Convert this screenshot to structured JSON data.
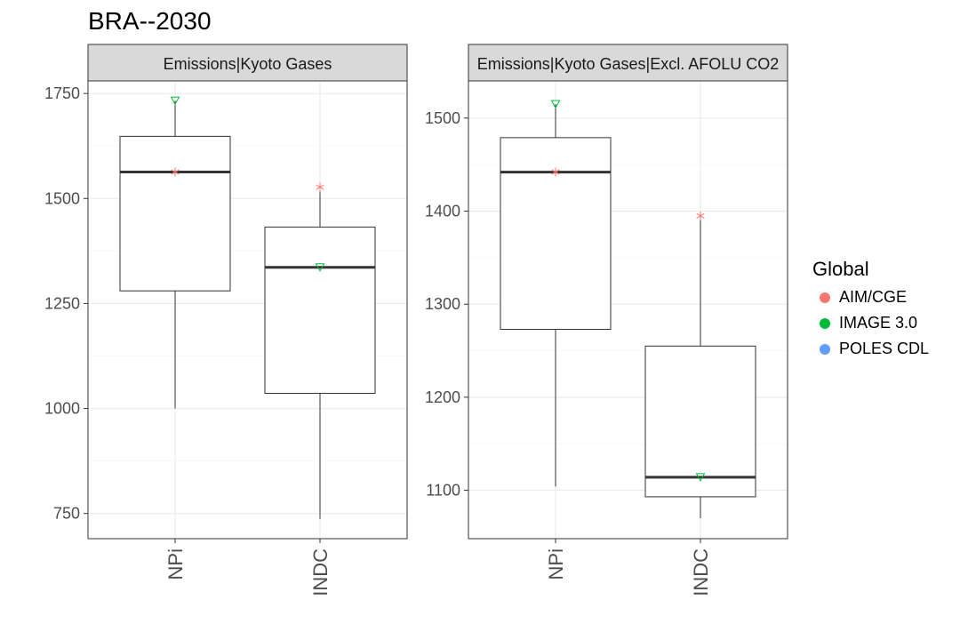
{
  "title": "BRA--2030",
  "legend": {
    "title": "Global",
    "items": [
      {
        "label": "AIM/CGE",
        "color": "#F8766D",
        "shape": "asterisk"
      },
      {
        "label": "IMAGE 3.0",
        "color": "#00BA38",
        "shape": "triangle-down"
      },
      {
        "label": "POLES CDL",
        "color": "#619CFF",
        "shape": "circle"
      }
    ]
  },
  "chart_data": [
    {
      "type": "boxplot",
      "panel_title": "Emissions|Kyoto Gases",
      "categories": [
        "NPi",
        "INDC"
      ],
      "ylim": [
        690,
        1780
      ],
      "yticks": [
        750,
        1000,
        1250,
        1500,
        1750
      ],
      "grid": true,
      "boxes": [
        {
          "category": "NPi",
          "min": 1000,
          "q1": 1280,
          "median": 1563,
          "q3": 1648,
          "max": 1733
        },
        {
          "category": "INDC",
          "min": 737,
          "q1": 1036,
          "median": 1336,
          "q3": 1432,
          "max": 1527
        }
      ],
      "points": [
        {
          "category": "NPi",
          "model": "IMAGE 3.0",
          "value": 1733
        },
        {
          "category": "NPi",
          "model": "AIM/CGE",
          "value": 1563
        },
        {
          "category": "INDC",
          "model": "AIM/CGE",
          "value": 1527
        },
        {
          "category": "INDC",
          "model": "IMAGE 3.0",
          "value": 1336
        }
      ]
    },
    {
      "type": "boxplot",
      "panel_title": "Emissions|Kyoto Gases|Excl. AFOLU CO2",
      "categories": [
        "NPi",
        "INDC"
      ],
      "ylim": [
        1048,
        1540
      ],
      "yticks": [
        1100,
        1200,
        1300,
        1400,
        1500
      ],
      "grid": true,
      "boxes": [
        {
          "category": "NPi",
          "min": 1104,
          "q1": 1273,
          "median": 1442,
          "q3": 1479,
          "max": 1515
        },
        {
          "category": "INDC",
          "min": 1070,
          "q1": 1093,
          "median": 1114,
          "q3": 1255,
          "max": 1395
        }
      ],
      "points": [
        {
          "category": "NPi",
          "model": "IMAGE 3.0",
          "value": 1515
        },
        {
          "category": "NPi",
          "model": "AIM/CGE",
          "value": 1442
        },
        {
          "category": "INDC",
          "model": "AIM/CGE",
          "value": 1395
        },
        {
          "category": "INDC",
          "model": "IMAGE 3.0",
          "value": 1114
        }
      ]
    }
  ]
}
